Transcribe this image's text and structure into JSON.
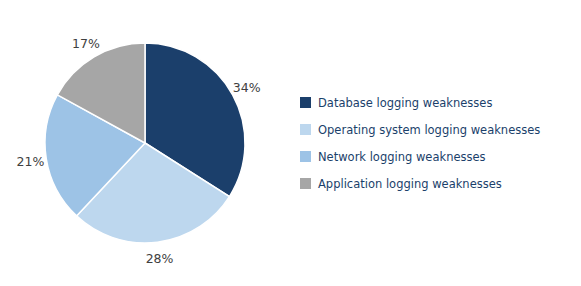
{
  "chart_data": {
    "type": "pie",
    "categories": [
      "Database logging weaknesses",
      "Operating system logging weaknesses",
      "Network logging weaknesses",
      "Application logging weaknesses"
    ],
    "values": [
      34,
      28,
      21,
      17
    ],
    "value_labels": [
      "34%",
      "28%",
      "21%",
      "17%"
    ],
    "colors": [
      "#1b3f6b",
      "#bdd7ee",
      "#9dc3e6",
      "#a6a6a6"
    ],
    "data_labels": true,
    "legend": "right"
  }
}
